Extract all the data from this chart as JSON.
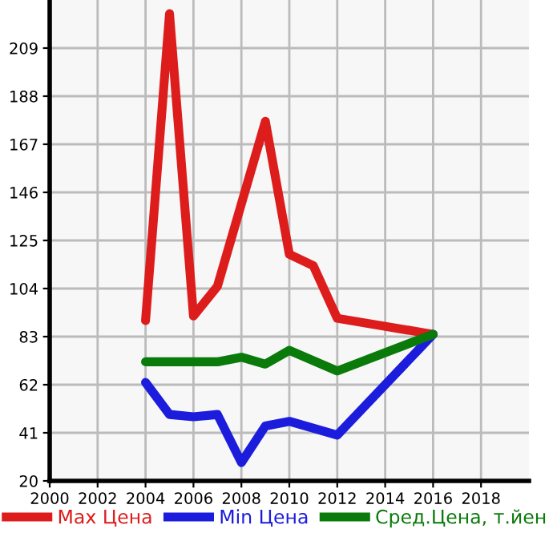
{
  "chart_data": {
    "type": "line",
    "x": [
      2004,
      2005,
      2006,
      2007,
      2008,
      2009,
      2010,
      2011,
      2012,
      2016
    ],
    "series": [
      {
        "name": "Max Цена",
        "color": "#dd1c1c",
        "x": [
          2004,
          2005,
          2006,
          2007,
          2009,
          2010,
          2011,
          2012,
          2016
        ],
        "values": [
          90,
          224,
          92,
          105,
          177,
          119,
          114,
          91,
          84
        ]
      },
      {
        "name": "Min Цена",
        "color": "#1c1cdd",
        "values": [
          63,
          49,
          48,
          49,
          28,
          44,
          46,
          null,
          40,
          84
        ]
      },
      {
        "name": "Сред.Цена, т.йен",
        "color": "#0a7a0a",
        "values": [
          72,
          72,
          72,
          72,
          74,
          71,
          77,
          null,
          68,
          84
        ]
      }
    ],
    "xlim": [
      2000,
      2020
    ],
    "xticks": [
      2000,
      2002,
      2004,
      2006,
      2008,
      2010,
      2012,
      2014,
      2016,
      2018
    ],
    "ylim": [
      20,
      230
    ],
    "yticks": [
      20,
      41,
      62,
      83,
      104,
      125,
      146,
      167,
      188,
      209
    ],
    "grid": true,
    "legend": "bottom",
    "marker": "none",
    "line_style": "solid"
  }
}
